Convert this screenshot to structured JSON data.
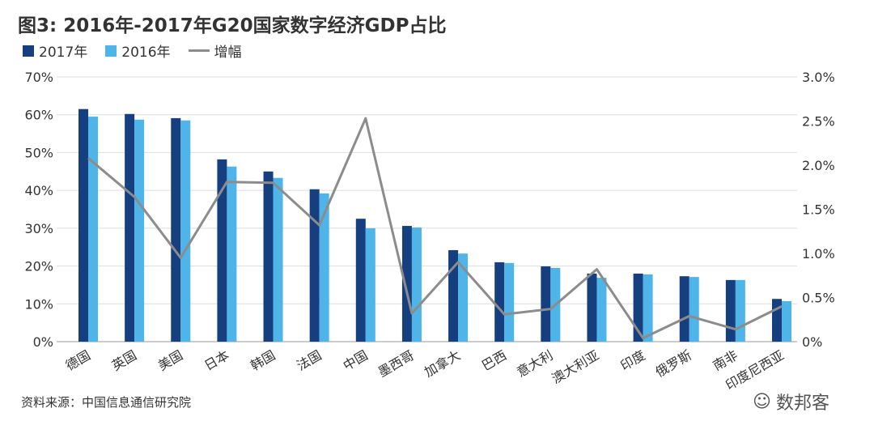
{
  "chart_data": {
    "type": "bar",
    "title": "图3: 2016年-2017年G20国家数字经济GDP占比",
    "categories": [
      "德国",
      "英国",
      "美国",
      "日本",
      "韩国",
      "法国",
      "中国",
      "墨西哥",
      "加拿大",
      "巴西",
      "意大利",
      "澳大利亚",
      "印度",
      "俄罗斯",
      "南非",
      "印度尼西亚"
    ],
    "series": [
      {
        "name": "2017年",
        "type": "bar",
        "axis": "left",
        "color": "#163f7f",
        "values": [
          61.5,
          60.2,
          59.1,
          48.2,
          45.0,
          40.3,
          32.5,
          30.6,
          24.2,
          21.0,
          19.9,
          18.0,
          18.0,
          17.3,
          16.3,
          11.3
        ]
      },
      {
        "name": "2016年",
        "type": "bar",
        "axis": "left",
        "color": "#4fb4e8",
        "values": [
          59.5,
          58.7,
          58.5,
          46.3,
          43.3,
          39.2,
          30.0,
          30.2,
          23.3,
          20.8,
          19.5,
          16.9,
          17.8,
          17.1,
          16.3,
          10.7
        ]
      },
      {
        "name": "增幅",
        "type": "line",
        "axis": "right",
        "color": "#8c8c8c",
        "values": [
          2.08,
          1.64,
          0.95,
          1.81,
          1.8,
          1.32,
          2.53,
          0.32,
          0.9,
          0.31,
          0.37,
          0.82,
          0.04,
          0.29,
          0.14,
          0.4
        ]
      }
    ],
    "ylim_left": [
      0,
      70
    ],
    "yticks_left": [
      "0%",
      "10%",
      "20%",
      "30%",
      "40%",
      "50%",
      "60%",
      "70%"
    ],
    "ylim_right": [
      0,
      3.0
    ],
    "yticks_right": [
      "0%",
      "0.5%",
      "1.0%",
      "1.5%",
      "2.0%",
      "2.5%",
      "3.0%"
    ],
    "grid": true,
    "legend": "top-left"
  },
  "source": "资料来源：中国信息通信研究院",
  "watermark": "数邦客"
}
